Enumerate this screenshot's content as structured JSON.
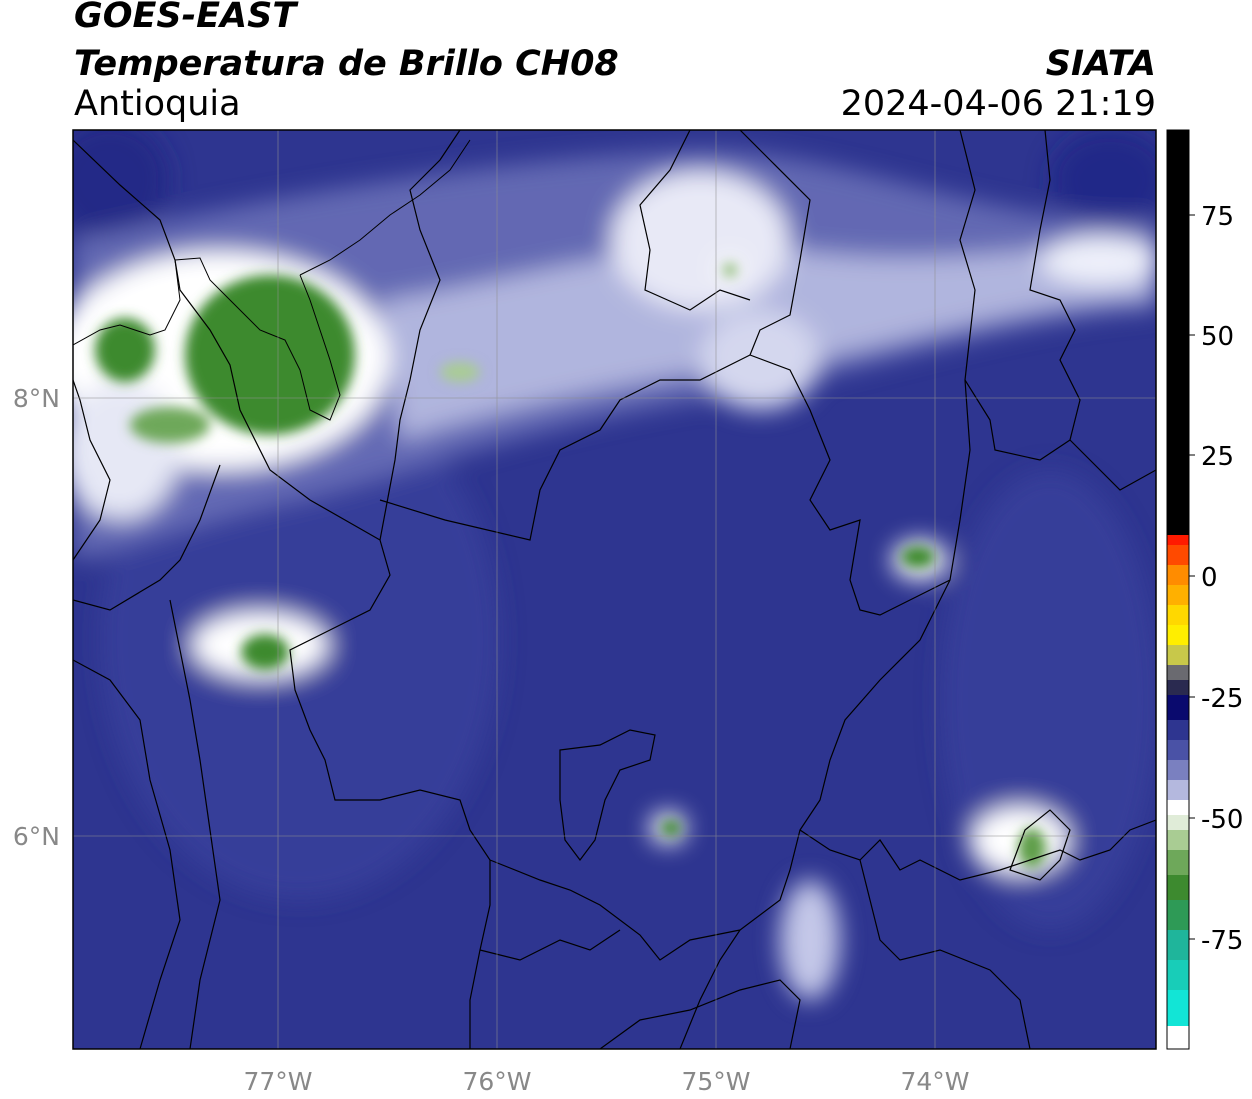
{
  "header": {
    "satellite": "GOES-EAST",
    "product": "Temperatura de Brillo CH08",
    "region": "Antioquia",
    "organization": "SIATA",
    "datetime": "2024-04-06 21:19"
  },
  "map": {
    "lon_ticks": [
      "77°W",
      "76°W",
      "75°W",
      "74°W"
    ],
    "lat_ticks": [
      "8°N",
      "6°N"
    ],
    "lon_range": [
      -77.95,
      -73.0
    ],
    "lat_range": [
      5.0,
      9.2
    ],
    "gridlines": true
  },
  "colorbar": {
    "tick_labels": [
      "75",
      "50",
      "25",
      "0",
      "-25",
      "-50",
      "-75"
    ],
    "range": [
      -93,
      92
    ],
    "colors": {
      "black": "#000000",
      "red": "#ff1a00",
      "orange": "#ff8c00",
      "yellow": "#ffe800",
      "dark_navy": "#0a0a6e",
      "blue": "#2e3590",
      "white": "#ffffff",
      "green": "#3d8a2f",
      "cyan": "#12e5d6"
    }
  }
}
